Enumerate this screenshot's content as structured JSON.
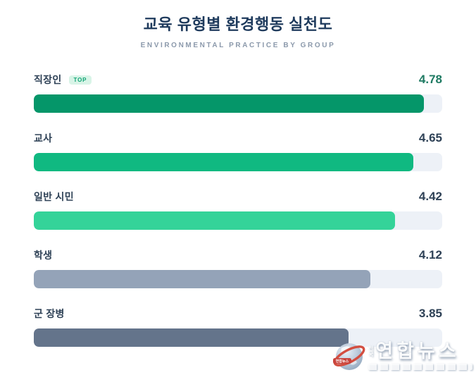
{
  "header": {
    "title": "교육 유형별 환경행동 실천도",
    "subtitle": "ENVIRONMENTAL PRACTICE BY GROUP"
  },
  "chart_data": {
    "type": "bar",
    "orientation": "horizontal",
    "title": "교육 유형별 환경행동 실천도",
    "subtitle": "ENVIRONMENTAL PRACTICE BY GROUP",
    "categories": [
      "직장인",
      "교사",
      "일반 시민",
      "학생",
      "군 장병"
    ],
    "values": [
      4.78,
      4.65,
      4.42,
      4.12,
      3.85
    ],
    "value_range": [
      0,
      5
    ],
    "bar_colors": [
      "#059669",
      "#10b981",
      "#34d399",
      "#94a3b8",
      "#64748b"
    ],
    "track_color": "#edf1f7",
    "grid": false,
    "legend": false,
    "top_badge": {
      "row_index": 0,
      "label": "TOP"
    }
  },
  "rows": [
    {
      "label": "직장인",
      "value": "4.78",
      "badge": "TOP",
      "color": "#059669",
      "value_color": "#1e7a62"
    },
    {
      "label": "교사",
      "value": "4.65",
      "badge": "",
      "color": "#10b981",
      "value_color": "#2e4156"
    },
    {
      "label": "일반 시민",
      "value": "4.42",
      "badge": "",
      "color": "#34d399",
      "value_color": "#2e4156"
    },
    {
      "label": "학생",
      "value": "4.12",
      "badge": "",
      "color": "#94a3b8",
      "value_color": "#2e4156"
    },
    {
      "label": "군 장병",
      "value": "3.85",
      "badge": "",
      "color": "#64748b",
      "value_color": "#2e4156"
    }
  ],
  "badge_colors": {
    "background": "#d8f4e7",
    "text": "#0fa374"
  },
  "watermark": {
    "brand": "연합뉴스",
    "region": "전\n국",
    "globe_banner": "연합뉴스"
  }
}
